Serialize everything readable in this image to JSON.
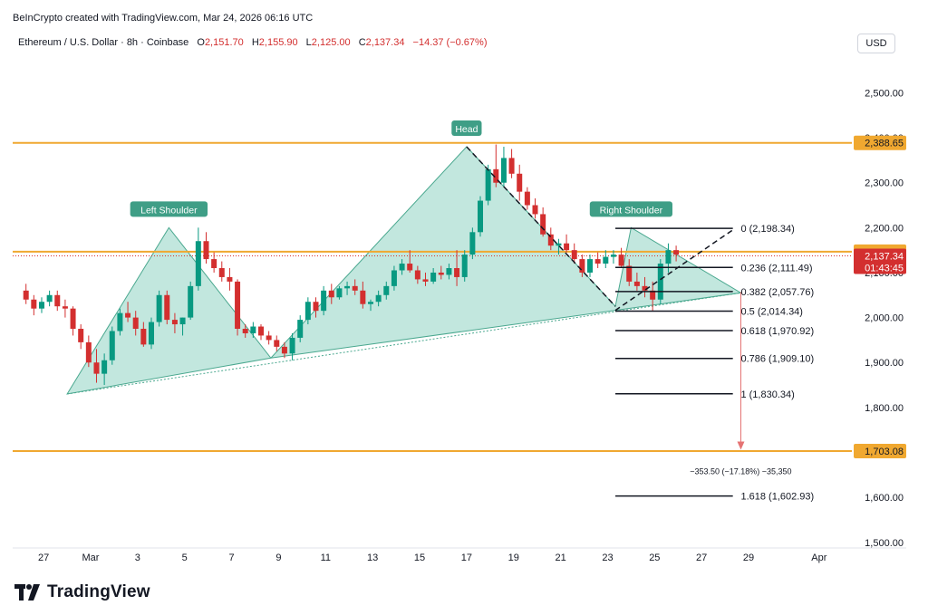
{
  "header": {
    "credit": "BeInCrypto created with TradingView.com, Mar 24, 2026 06:16 UTC",
    "symbol": "Ethereum / U.S. Dollar · 8h · Coinbase",
    "o_label": "O",
    "o_value": "2,151.70",
    "h_label": "H",
    "h_value": "2,155.90",
    "l_label": "L",
    "l_value": "2,125.00",
    "c_label": "C",
    "c_value": "2,137.34",
    "change": "−14.37 (−0.67%)"
  },
  "currency": "USD",
  "brand": {
    "name": "TradingView",
    "icon": "tradingview-logo-icon"
  },
  "colors": {
    "up": "#089981",
    "down": "#d32f2f",
    "level": "#f0a830",
    "pattern": "#8fd3c3",
    "pattern_label": "#3f9e86"
  },
  "chart_data": {
    "type": "candlestick",
    "title": "Ethereum / U.S. Dollar · 8h · Coinbase",
    "ylim": [
      1500,
      2600
    ],
    "y_ticks": [
      {
        "value": 2500,
        "label": "2,500.00"
      },
      {
        "value": 2400,
        "label": "2,400.00"
      },
      {
        "value": 2300,
        "label": "2,300.00"
      },
      {
        "value": 2200,
        "label": "2,200.00"
      },
      {
        "value": 2100,
        "label": "2,100.00"
      },
      {
        "value": 2000,
        "label": "2,000.00"
      },
      {
        "value": 1900,
        "label": "1,900.00"
      },
      {
        "value": 1800,
        "label": "1,800.00"
      },
      {
        "value": 1700,
        "label": "1,700.00"
      },
      {
        "value": 1600,
        "label": "1,600.00"
      },
      {
        "value": 1500,
        "label": "1,500.00"
      }
    ],
    "x_ticks": [
      {
        "day": -2,
        "label": "27"
      },
      {
        "day": 0,
        "label": "Mar"
      },
      {
        "day": 2,
        "label": "3"
      },
      {
        "day": 4,
        "label": "5"
      },
      {
        "day": 6,
        "label": "7"
      },
      {
        "day": 8,
        "label": "9"
      },
      {
        "day": 10,
        "label": "11"
      },
      {
        "day": 12,
        "label": "13"
      },
      {
        "day": 14,
        "label": "15"
      },
      {
        "day": 16,
        "label": "17"
      },
      {
        "day": 18,
        "label": "19"
      },
      {
        "day": 20,
        "label": "21"
      },
      {
        "day": 22,
        "label": "23"
      },
      {
        "day": 24,
        "label": "25"
      },
      {
        "day": 26,
        "label": "27"
      },
      {
        "day": 28,
        "label": "29"
      },
      {
        "day": 31,
        "label": "Apr"
      }
    ],
    "candles": [
      [
        2060,
        2075,
        2030,
        2040
      ],
      [
        2040,
        2050,
        2005,
        2020
      ],
      [
        2020,
        2045,
        2010,
        2035
      ],
      [
        2035,
        2060,
        2025,
        2050
      ],
      [
        2050,
        2060,
        2015,
        2025
      ],
      [
        2025,
        2040,
        2000,
        2020
      ],
      [
        2020,
        2025,
        1960,
        1975
      ],
      [
        1975,
        1985,
        1930,
        1945
      ],
      [
        1945,
        1960,
        1890,
        1900
      ],
      [
        1900,
        1930,
        1855,
        1875
      ],
      [
        1875,
        1920,
        1850,
        1905
      ],
      [
        1905,
        1980,
        1895,
        1970
      ],
      [
        1970,
        2020,
        1960,
        2010
      ],
      [
        2010,
        2035,
        1990,
        2000
      ],
      [
        2000,
        2015,
        1960,
        1975
      ],
      [
        1975,
        1990,
        1935,
        1940
      ],
      [
        1940,
        2000,
        1930,
        1990
      ],
      [
        1990,
        2060,
        1980,
        2050
      ],
      [
        2050,
        2060,
        1985,
        1995
      ],
      [
        1995,
        2010,
        1965,
        1985
      ],
      [
        1985,
        2000,
        1960,
        2000
      ],
      [
        2000,
        2080,
        1995,
        2070
      ],
      [
        2070,
        2200,
        2060,
        2170
      ],
      [
        2170,
        2190,
        2120,
        2130
      ],
      [
        2130,
        2145,
        2100,
        2110
      ],
      [
        2110,
        2125,
        2080,
        2090
      ],
      [
        2090,
        2110,
        2060,
        2080
      ],
      [
        2080,
        2085,
        1960,
        1975
      ],
      [
        1975,
        1985,
        1955,
        1965
      ],
      [
        1965,
        1990,
        1955,
        1980
      ],
      [
        1980,
        1985,
        1950,
        1960
      ],
      [
        1960,
        1970,
        1940,
        1950
      ],
      [
        1950,
        1960,
        1925,
        1935
      ],
      [
        1935,
        1945,
        1910,
        1920
      ],
      [
        1920,
        1965,
        1905,
        1955
      ],
      [
        1955,
        2005,
        1945,
        1995
      ],
      [
        1995,
        2045,
        1985,
        2035
      ],
      [
        2035,
        2045,
        2000,
        2015
      ],
      [
        2015,
        2070,
        2005,
        2060
      ],
      [
        2060,
        2075,
        2030,
        2045
      ],
      [
        2045,
        2070,
        2040,
        2065
      ],
      [
        2065,
        2080,
        2050,
        2070
      ],
      [
        2070,
        2085,
        2050,
        2060
      ],
      [
        2060,
        2080,
        2020,
        2030
      ],
      [
        2030,
        2040,
        2015,
        2035
      ],
      [
        2035,
        2060,
        2025,
        2050
      ],
      [
        2050,
        2080,
        2040,
        2070
      ],
      [
        2070,
        2115,
        2060,
        2105
      ],
      [
        2105,
        2130,
        2095,
        2120
      ],
      [
        2120,
        2150,
        2100,
        2105
      ],
      [
        2105,
        2115,
        2075,
        2085
      ],
      [
        2085,
        2100,
        2070,
        2080
      ],
      [
        2080,
        2110,
        2075,
        2100
      ],
      [
        2100,
        2115,
        2085,
        2095
      ],
      [
        2095,
        2120,
        2085,
        2110
      ],
      [
        2110,
        2150,
        2070,
        2090
      ],
      [
        2090,
        2150,
        2080,
        2140
      ],
      [
        2140,
        2200,
        2130,
        2190
      ],
      [
        2190,
        2270,
        2180,
        2260
      ],
      [
        2260,
        2340,
        2250,
        2330
      ],
      [
        2330,
        2385,
        2290,
        2300
      ],
      [
        2300,
        2380,
        2290,
        2355
      ],
      [
        2355,
        2375,
        2310,
        2320
      ],
      [
        2320,
        2340,
        2260,
        2280
      ],
      [
        2280,
        2290,
        2240,
        2250
      ],
      [
        2250,
        2265,
        2220,
        2230
      ],
      [
        2230,
        2245,
        2180,
        2185
      ],
      [
        2185,
        2200,
        2150,
        2160
      ],
      [
        2160,
        2175,
        2140,
        2165
      ],
      [
        2165,
        2185,
        2145,
        2150
      ],
      [
        2150,
        2165,
        2120,
        2130
      ],
      [
        2130,
        2140,
        2090,
        2100
      ],
      [
        2100,
        2140,
        2090,
        2130
      ],
      [
        2130,
        2145,
        2110,
        2120
      ],
      [
        2120,
        2150,
        2110,
        2135
      ],
      [
        2135,
        2150,
        2120,
        2140
      ],
      [
        2140,
        2155,
        2110,
        2115
      ],
      [
        2115,
        2130,
        2070,
        2080
      ],
      [
        2080,
        2100,
        2060,
        2070
      ],
      [
        2070,
        2090,
        2045,
        2060
      ],
      [
        2060,
        2080,
        2015,
        2040
      ],
      [
        2040,
        2130,
        2030,
        2120
      ],
      [
        2120,
        2165,
        2100,
        2150
      ],
      [
        2150,
        2160,
        2125,
        2140
      ]
    ],
    "last_price": 2137.34,
    "levels": [
      {
        "value": 2388.65,
        "label": "2,388.65"
      },
      {
        "value": 2146.61,
        "label": "2,146.61"
      },
      {
        "value": 1703.08,
        "label": "1,703.08"
      }
    ],
    "last_price_label": "2,137.34",
    "countdown_label": "01:43:45",
    "pattern_labels": [
      "Left Shoulder",
      "Head",
      "Right Shoulder"
    ],
    "fib_levels": [
      {
        "value": 2198.34,
        "label": "0 (2,198.34)"
      },
      {
        "value": 2111.49,
        "label": "0.236 (2,111.49)"
      },
      {
        "value": 2057.76,
        "label": "0.382 (2,057.76)"
      },
      {
        "value": 2014.34,
        "label": "0.5 (2,014.34)"
      },
      {
        "value": 1970.92,
        "label": "0.618 (1,970.92)"
      },
      {
        "value": 1909.1,
        "label": "0.786 (1,909.10)"
      },
      {
        "value": 1830.34,
        "label": "1 (1,830.34)"
      },
      {
        "value": 1602.93,
        "label": "1.618 (1,602.93)"
      }
    ],
    "measure_label": "−353.50 (−17.18%) −35,350",
    "grid": false
  }
}
